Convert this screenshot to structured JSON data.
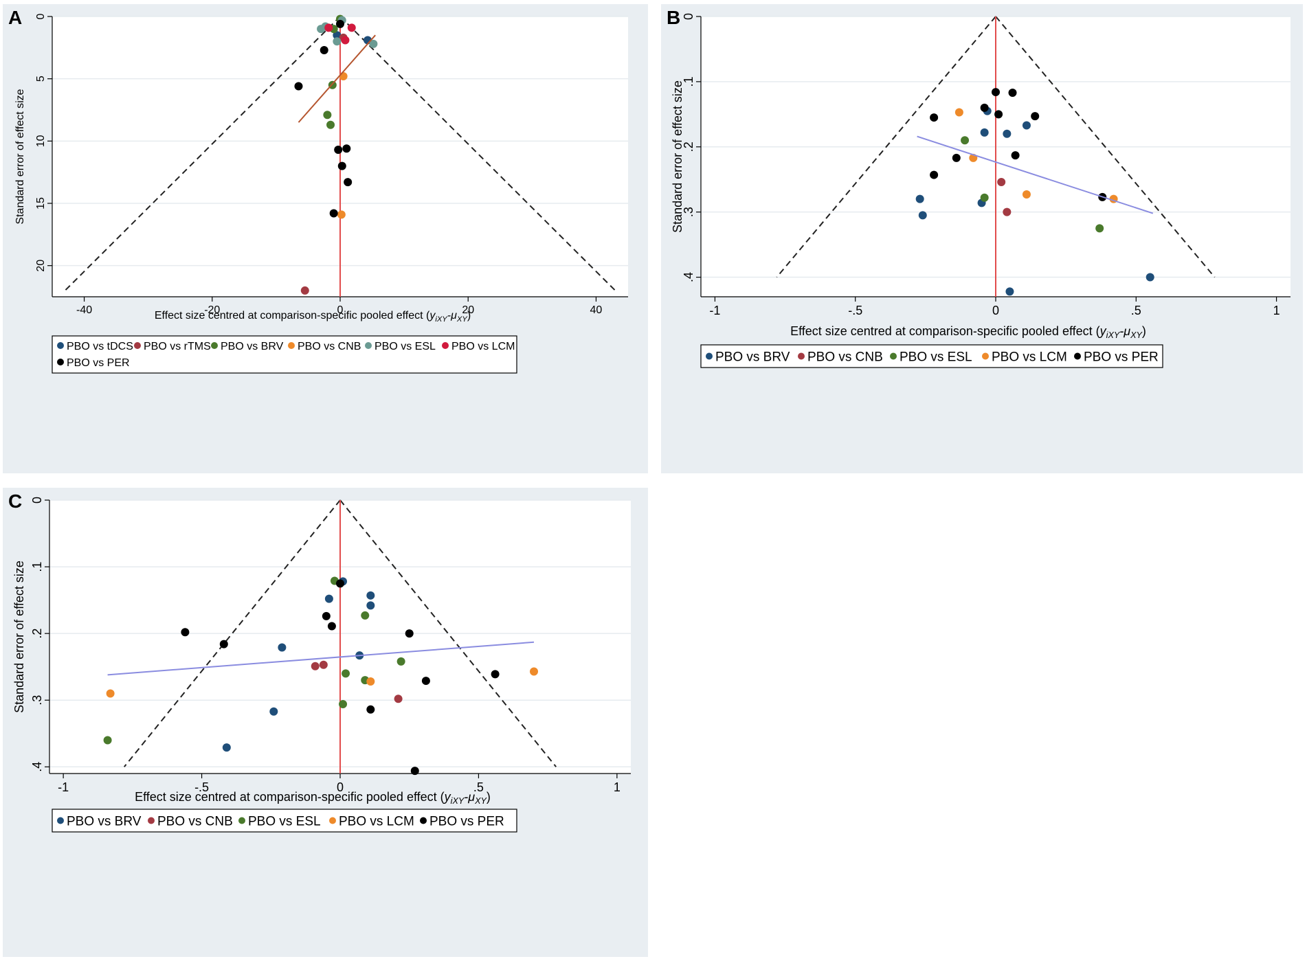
{
  "chart_data": [
    {
      "panel": "A",
      "type": "scatter",
      "subtype": "comparison-adjusted funnel plot",
      "xlabel_main": "Effect size centred at comparison-specific pooled effect (",
      "xlabel_sym": "y",
      "xlabel_sub1": "iXY",
      "xlabel_sym2": "-μ",
      "xlabel_sub2": "XY",
      "xlabel_close": ")",
      "ylabel": "Standard error of effect size",
      "xlim": [
        -45,
        45
      ],
      "ylim": [
        0,
        22.5
      ],
      "y_inverted": true,
      "xticks": [
        -40,
        -20,
        0,
        20,
        40
      ],
      "xtick_labels": [
        "-40",
        "-20",
        "0",
        "20",
        "40"
      ],
      "yticks": [
        0,
        5,
        10,
        15,
        20
      ],
      "ytick_labels": [
        "0",
        "5",
        "10",
        "15",
        "20"
      ],
      "funnel": {
        "apex": [
          0,
          0
        ],
        "left_end": [
          -43,
          22
        ],
        "right_end": [
          43,
          22
        ]
      },
      "regression_line": {
        "color": "#b5552e",
        "from": [
          -6.5,
          8.5
        ],
        "to": [
          5.5,
          1.5
        ]
      },
      "legend": [
        {
          "label": "PBO vs tDCS",
          "color": "#1f4e79"
        },
        {
          "label": "PBO vs rTMS",
          "color": "#a33a42"
        },
        {
          "label": "PBO vs BRV",
          "color": "#4a7a2c"
        },
        {
          "label": "PBO vs CNB",
          "color": "#ee8a2a"
        },
        {
          "label": "PBO vs ESL",
          "color": "#6b9b93"
        },
        {
          "label": "PBO vs LCM",
          "color": "#d11a3d"
        },
        {
          "label": "PBO vs PER",
          "color": "#000000"
        }
      ],
      "series": [
        {
          "name": "PBO vs tDCS",
          "points": [
            [
              -0.5,
              1.5
            ],
            [
              4.3,
              1.9
            ]
          ]
        },
        {
          "name": "PBO vs rTMS",
          "points": [
            [
              -5.5,
              22.0
            ],
            [
              0.5,
              1.7
            ]
          ]
        },
        {
          "name": "PBO vs BRV",
          "points": [
            [
              -1.2,
              5.5
            ],
            [
              -2.0,
              7.9
            ],
            [
              -1.5,
              8.7
            ],
            [
              0.0,
              0.2
            ],
            [
              -1.0,
              1.0
            ]
          ]
        },
        {
          "name": "PBO vs CNB",
          "points": [
            [
              0.5,
              4.8
            ],
            [
              0.2,
              15.9
            ]
          ]
        },
        {
          "name": "PBO vs ESL",
          "points": [
            [
              -3.0,
              1.0
            ],
            [
              -2.3,
              0.8
            ],
            [
              5.2,
              2.2
            ],
            [
              -0.5,
              2.0
            ],
            [
              0.3,
              0.3
            ]
          ]
        },
        {
          "name": "PBO vs LCM",
          "points": [
            [
              -1.8,
              0.9
            ],
            [
              1.8,
              0.9
            ],
            [
              0.8,
              1.9
            ]
          ]
        },
        {
          "name": "PBO vs PER",
          "points": [
            [
              -6.5,
              5.6
            ],
            [
              -2.5,
              2.7
            ],
            [
              0.0,
              0.6
            ],
            [
              1.0,
              10.6
            ],
            [
              -0.3,
              10.7
            ],
            [
              0.3,
              12.0
            ],
            [
              1.2,
              13.3
            ],
            [
              -1.0,
              15.8
            ]
          ]
        }
      ]
    },
    {
      "panel": "B",
      "type": "scatter",
      "subtype": "comparison-adjusted funnel plot",
      "xlabel_main": "Effect size centred at comparison-specific pooled effect (",
      "xlabel_sym": "y",
      "xlabel_sub1": "iXY",
      "xlabel_sym2": "-μ",
      "xlabel_sub2": "XY",
      "xlabel_close": ")",
      "ylabel": "Standard error of effect size",
      "xlim": [
        -1.05,
        1.05
      ],
      "ylim": [
        0,
        0.43
      ],
      "y_inverted": true,
      "xticks": [
        -1,
        -0.5,
        0,
        0.5,
        1
      ],
      "xtick_labels": [
        "-1",
        "-.5",
        "0",
        ".5",
        "1"
      ],
      "yticks": [
        0,
        0.1,
        0.2,
        0.3,
        0.4
      ],
      "ytick_labels": [
        "0",
        ".1",
        ".2",
        ".3",
        ".4"
      ],
      "funnel": {
        "apex": [
          0,
          0
        ],
        "left_end": [
          -0.78,
          0.4
        ],
        "right_end": [
          0.78,
          0.4
        ]
      },
      "regression_line": {
        "color": "#8a8ce0",
        "from": [
          -0.28,
          0.184
        ],
        "to": [
          0.56,
          0.302
        ]
      },
      "legend": [
        {
          "label": "PBO vs BRV",
          "color": "#1f4e79"
        },
        {
          "label": "PBO vs CNB",
          "color": "#a33a42"
        },
        {
          "label": "PBO vs ESL",
          "color": "#4a7a2c"
        },
        {
          "label": "PBO vs LCM",
          "color": "#ee8a2a"
        },
        {
          "label": "PBO vs PER",
          "color": "#000000"
        }
      ],
      "series": [
        {
          "name": "PBO vs BRV",
          "points": [
            [
              -0.03,
              0.145
            ],
            [
              -0.04,
              0.178
            ],
            [
              0.04,
              0.18
            ],
            [
              0.11,
              0.167
            ],
            [
              -0.27,
              0.28
            ],
            [
              -0.26,
              0.305
            ],
            [
              -0.05,
              0.286
            ],
            [
              0.55,
              0.4
            ],
            [
              0.05,
              0.422
            ]
          ]
        },
        {
          "name": "PBO vs CNB",
          "points": [
            [
              0.02,
              0.254
            ],
            [
              0.04,
              0.3
            ]
          ]
        },
        {
          "name": "PBO vs ESL",
          "points": [
            [
              -0.11,
              0.19
            ],
            [
              -0.04,
              0.278
            ],
            [
              0.37,
              0.325
            ]
          ]
        },
        {
          "name": "PBO vs LCM",
          "points": [
            [
              -0.13,
              0.147
            ],
            [
              -0.08,
              0.217
            ],
            [
              0.11,
              0.273
            ],
            [
              0.42,
              0.28
            ]
          ]
        },
        {
          "name": "PBO vs PER",
          "points": [
            [
              0.0,
              0.116
            ],
            [
              0.06,
              0.117
            ],
            [
              -0.04,
              0.14
            ],
            [
              0.01,
              0.15
            ],
            [
              0.14,
              0.153
            ],
            [
              -0.22,
              0.155
            ],
            [
              -0.14,
              0.217
            ],
            [
              0.07,
              0.213
            ],
            [
              -0.22,
              0.243
            ],
            [
              0.38,
              0.277
            ]
          ]
        }
      ]
    },
    {
      "panel": "C",
      "type": "scatter",
      "subtype": "comparison-adjusted funnel plot",
      "xlabel_main": "Effect size centred at comparison-specific pooled effect (",
      "xlabel_sym": "y",
      "xlabel_sub1": "iXY",
      "xlabel_sym2": "-μ",
      "xlabel_sub2": "XY",
      "xlabel_close": ")",
      "ylabel": "Standard error of effect size",
      "xlim": [
        -1.05,
        1.05
      ],
      "ylim": [
        0,
        0.41
      ],
      "y_inverted": true,
      "xticks": [
        -1,
        -0.5,
        0,
        0.5,
        1
      ],
      "xtick_labels": [
        "-1",
        "-.5",
        "0",
        ".5",
        "1"
      ],
      "yticks": [
        0,
        0.1,
        0.2,
        0.3,
        0.4
      ],
      "ytick_labels": [
        "0",
        ".1",
        ".2",
        ".3",
        ".4"
      ],
      "funnel": {
        "apex": [
          0,
          0
        ],
        "left_end": [
          -0.78,
          0.4
        ],
        "right_end": [
          0.78,
          0.4
        ]
      },
      "regression_line": {
        "color": "#8a8ce0",
        "from": [
          -0.84,
          0.262
        ],
        "to": [
          0.7,
          0.213
        ]
      },
      "legend": [
        {
          "label": "PBO vs BRV",
          "color": "#1f4e79"
        },
        {
          "label": "PBO vs CNB",
          "color": "#a33a42"
        },
        {
          "label": "PBO vs ESL",
          "color": "#4a7a2c"
        },
        {
          "label": "PBO vs LCM",
          "color": "#ee8a2a"
        },
        {
          "label": "PBO vs PER",
          "color": "#000000"
        }
      ],
      "series": [
        {
          "name": "PBO vs BRV",
          "points": [
            [
              0.01,
              0.122
            ],
            [
              -0.04,
              0.148
            ],
            [
              0.11,
              0.143
            ],
            [
              0.11,
              0.158
            ],
            [
              -0.21,
              0.221
            ],
            [
              0.07,
              0.233
            ],
            [
              -0.24,
              0.317
            ],
            [
              -0.41,
              0.371
            ]
          ]
        },
        {
          "name": "PBO vs CNB",
          "points": [
            [
              -0.09,
              0.249
            ],
            [
              -0.06,
              0.247
            ],
            [
              0.21,
              0.298
            ]
          ]
        },
        {
          "name": "PBO vs ESL",
          "points": [
            [
              -0.02,
              0.121
            ],
            [
              0.09,
              0.173
            ],
            [
              0.22,
              0.242
            ],
            [
              0.02,
              0.26
            ],
            [
              0.09,
              0.27
            ],
            [
              0.01,
              0.306
            ],
            [
              -0.84,
              0.36
            ]
          ]
        },
        {
          "name": "PBO vs LCM",
          "points": [
            [
              0.11,
              0.272
            ],
            [
              0.7,
              0.257
            ],
            [
              -0.83,
              0.29
            ]
          ]
        },
        {
          "name": "PBO vs PER",
          "points": [
            [
              0.0,
              0.125
            ],
            [
              -0.05,
              0.174
            ],
            [
              -0.03,
              0.189
            ],
            [
              0.25,
              0.2
            ],
            [
              -0.56,
              0.198
            ],
            [
              -0.42,
              0.216
            ],
            [
              0.31,
              0.271
            ],
            [
              0.56,
              0.261
            ],
            [
              0.11,
              0.314
            ],
            [
              0.27,
              0.406
            ]
          ]
        }
      ]
    }
  ]
}
